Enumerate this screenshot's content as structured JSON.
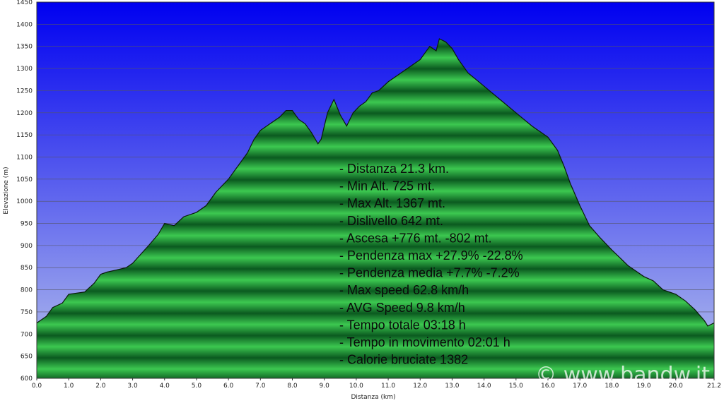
{
  "chart_data": {
    "type": "area",
    "title": "",
    "xlabel": "Distanza  (km)",
    "ylabel": "Elevazione (m)",
    "xlim": [
      0,
      21.2
    ],
    "ylim": [
      600,
      1450
    ],
    "x_ticks": [
      "0.0",
      "1.0",
      "2.0",
      "3.0",
      "4.0",
      "5.0",
      "6.0",
      "7.0",
      "8.0",
      "9.0",
      "10.0",
      "11.0",
      "12.0",
      "13.0",
      "14.0",
      "15.0",
      "16.0",
      "17.0",
      "18.0",
      "19.0",
      "20.0",
      "21.2"
    ],
    "y_ticks": [
      600,
      650,
      700,
      750,
      800,
      850,
      900,
      950,
      1000,
      1050,
      1100,
      1150,
      1200,
      1250,
      1300,
      1350,
      1400,
      1450
    ],
    "grid": "horizontal",
    "series": [
      {
        "x": [
          0.0,
          0.3,
          0.5,
          0.8,
          1.0,
          1.5,
          1.8,
          2.0,
          2.2,
          2.5,
          2.8,
          3.0,
          3.5,
          3.8,
          4.0,
          4.3,
          4.6,
          5.0,
          5.3,
          5.6,
          6.0,
          6.3,
          6.6,
          6.8,
          7.0,
          7.3,
          7.6,
          7.8,
          8.0,
          8.2,
          8.4,
          8.6,
          8.8,
          8.9,
          9.1,
          9.3,
          9.5,
          9.7,
          9.9,
          10.1,
          10.3,
          10.5,
          10.7,
          11.0,
          11.4,
          11.8,
          12.0,
          12.3,
          12.5,
          12.6,
          12.8,
          13.0,
          13.2,
          13.5,
          14.0,
          14.5,
          15.0,
          15.5,
          16.0,
          16.3,
          16.5,
          16.7,
          17.0,
          17.3,
          17.6,
          18.0,
          18.5,
          19.0,
          19.3,
          19.6,
          20.0,
          20.3,
          20.6,
          20.9,
          21.0,
          21.2
        ],
        "y": [
          725,
          740,
          760,
          770,
          790,
          795,
          815,
          835,
          840,
          845,
          850,
          860,
          900,
          925,
          950,
          945,
          965,
          975,
          990,
          1020,
          1050,
          1080,
          1110,
          1140,
          1160,
          1175,
          1190,
          1205,
          1205,
          1185,
          1175,
          1155,
          1130,
          1140,
          1200,
          1230,
          1195,
          1170,
          1200,
          1215,
          1225,
          1245,
          1250,
          1270,
          1290,
          1310,
          1320,
          1350,
          1340,
          1367,
          1360,
          1345,
          1320,
          1290,
          1260,
          1230,
          1200,
          1170,
          1145,
          1115,
          1080,
          1040,
          990,
          945,
          920,
          890,
          855,
          830,
          820,
          800,
          790,
          775,
          755,
          730,
          718,
          725
        ]
      }
    ],
    "annotations": [
      "- Distanza 21.3 km.",
      "- Min Alt. 725 mt.",
      "- Max Alt. 1367 mt.",
      "- Dislivello 642 mt.",
      "- Ascesa +776 mt. -802 mt.",
      "- Pendenza max +27.9% -22.8%",
      "- Pendenza media +7.7% -7.2%",
      "- Max speed 62.8 km/h",
      "- AVG Speed 9.8 km/h",
      "- Tempo totale 03:18 h",
      "- Tempo in movimento 02:01 h",
      "- Calorie bruciate 1382"
    ],
    "watermark": "© www.bandw.it",
    "colors": {
      "sky_top": "#0000f0",
      "sky_bottom": "#b8c4ec",
      "fill_dark": "#0b5a20",
      "fill_light": "#3cc850",
      "outline": "#0a1a0a",
      "grid": "#555566"
    }
  }
}
